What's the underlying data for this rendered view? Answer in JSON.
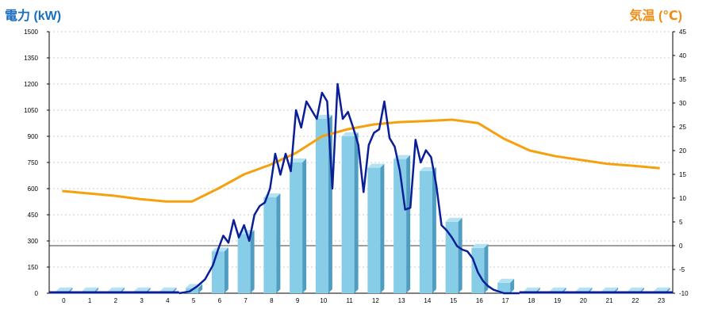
{
  "chart_data": {
    "type": "bar+line",
    "title": "",
    "ylabel_left": "電力 (kW)",
    "ylabel_right": "気温 (℃)",
    "ylim_left": [
      0,
      1500
    ],
    "ylim_right": [
      -10,
      45
    ],
    "yticks_left": [
      "0",
      "150",
      "300",
      "450",
      "600",
      "750",
      "900",
      "1050",
      "1200",
      "1350",
      "1500"
    ],
    "yticks_right": [
      "-10",
      "-5",
      "0",
      "5",
      "10",
      "15",
      "20",
      "25",
      "30",
      "35",
      "40",
      "45"
    ],
    "categories": [
      "0",
      "1",
      "2",
      "3",
      "4",
      "5",
      "6",
      "7",
      "8",
      "9",
      "10",
      "11",
      "12",
      "13",
      "14",
      "15",
      "16",
      "17",
      "18",
      "19",
      "20",
      "21",
      "22",
      "23"
    ],
    "grid": true,
    "series": [
      {
        "kind": "bar",
        "axis": "left",
        "color": "#87cde8",
        "values": [
          10,
          10,
          10,
          10,
          10,
          30,
          240,
          340,
          550,
          750,
          1000,
          900,
          720,
          770,
          700,
          410,
          260,
          60,
          10,
          10,
          10,
          10,
          10,
          10
        ]
      },
      {
        "kind": "line",
        "axis": "left",
        "color": "#0a1e96",
        "x": [
          4.5,
          4.9,
          5.2,
          5.5,
          5.8,
          6.0,
          6.2,
          6.4,
          6.6,
          6.8,
          7.0,
          7.2,
          7.4,
          7.6,
          7.8,
          8.0,
          8.2,
          8.4,
          8.6,
          8.8,
          9.0,
          9.2,
          9.4,
          9.6,
          9.8,
          10.0,
          10.2,
          10.4,
          10.6,
          10.8,
          11.0,
          11.2,
          11.4,
          11.6,
          11.8,
          12.0,
          12.2,
          12.4,
          12.6,
          12.8,
          13.0,
          13.2,
          13.4,
          13.6,
          13.8,
          14.0,
          14.2,
          14.4,
          14.6,
          14.8,
          15.0,
          15.2,
          15.4,
          15.6,
          15.8,
          16.0,
          16.2,
          16.4,
          16.6,
          16.8,
          17.0,
          17.3,
          17.6
        ],
        "values": [
          0,
          10,
          40,
          80,
          160,
          250,
          330,
          290,
          420,
          320,
          390,
          300,
          450,
          500,
          520,
          600,
          800,
          680,
          800,
          700,
          1050,
          950,
          1100,
          1050,
          1000,
          1150,
          1100,
          600,
          1200,
          1000,
          1040,
          950,
          850,
          580,
          850,
          920,
          940,
          1100,
          890,
          840,
          700,
          480,
          490,
          880,
          750,
          820,
          780,
          620,
          390,
          360,
          320,
          270,
          250,
          240,
          200,
          120,
          70,
          40,
          20,
          10,
          0,
          0,
          0
        ]
      },
      {
        "kind": "line",
        "axis": "right",
        "color": "#f5a10f",
        "x": [
          0,
          1,
          2,
          3,
          4,
          5,
          6,
          7,
          8,
          9,
          10,
          11,
          12,
          13,
          14,
          15,
          16,
          17,
          18,
          19,
          20,
          21,
          22,
          23
        ],
        "values": [
          11.5,
          11,
          10.5,
          9.8,
          9.3,
          9.3,
          12,
          15,
          17,
          19.5,
          23,
          24.5,
          25.5,
          26,
          26.2,
          26.5,
          25.8,
          22.5,
          20,
          18.8,
          18,
          17.2,
          16.8,
          16.3
        ]
      }
    ]
  }
}
